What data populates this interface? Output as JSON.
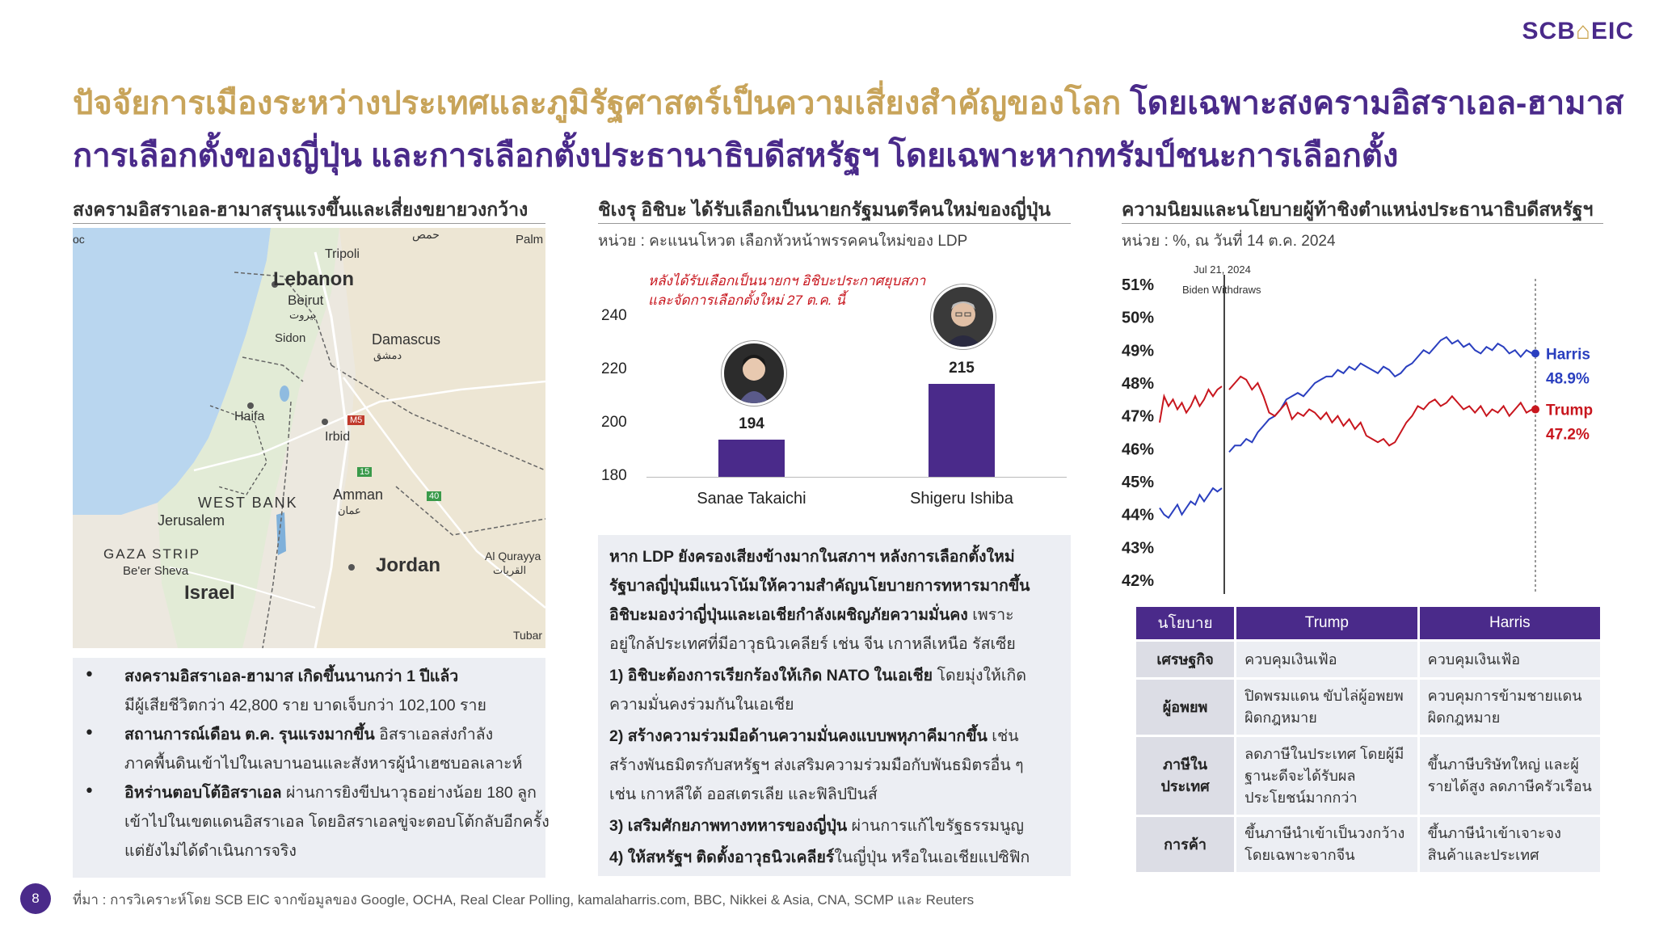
{
  "logo": {
    "left": "SCB",
    "house": "⌂",
    "right": "EIC"
  },
  "title": {
    "line1_gold": "ปัจจัยการเมืองระหว่างประเทศและภูมิรัฐศาสตร์เป็นความเสี่ยงสำคัญของโลก",
    "line1_purple": "โดยเฉพาะสงครามอิสราเอล-ฮามาส",
    "line2_purple": "การเลือกตั้งของญี่ปุ่น และการเลือกตั้งประธานาธิบดีสหรัฐฯ โดยเฉพาะหากทรัมป์ชนะการเลือกตั้ง"
  },
  "left": {
    "heading": "สงครามอิสราเอล-ฮามาสรุนแรงขึ้นและเสี่ยงขยายวงกว้าง",
    "map_labels": {
      "homs": "حمص",
      "palm": "Palm",
      "tripoli": "Tripoli",
      "lebanon": "Lebanon",
      "beirut": "Beirut",
      "beirut_ar": "بيروت",
      "sidon": "Sidon",
      "damascus": "Damascus",
      "damascus_ar": "دمشق",
      "haifa": "Haifa",
      "irbid": "Irbid",
      "westbank": "WEST BANK",
      "amman": "Amman",
      "amman_ar": "عمان",
      "jerusalem": "Jerusalem",
      "gaza": "GAZA STRIP",
      "beersheva": "Be'er Sheva",
      "jordan": "Jordan",
      "israel": "Israel",
      "alqurayyat": "Al Qurayya",
      "alqurayyat_ar": "القريات",
      "tubar": "Tubar",
      "m5": "M5",
      "r15": "15",
      "r40": "40",
      "oc": "oc"
    },
    "bullets": [
      {
        "bold": "สงครามอิสราเอล-ฮามาส เกิดขึ้นนานกว่า 1 ปีแล้ว",
        "rest1": "",
        "rest2": "มีผู้เสียชีวิตกว่า 42,800 ราย บาดเจ็บกว่า 102,100 ราย"
      },
      {
        "bold": "สถานการณ์เดือน ต.ค. รุนแรงมากขึ้น",
        "rest1": " อิสราเอลส่งกำลัง",
        "rest2": "ภาคพื้นดินเข้าไปในเลบานอนและสังหารผู้นำเฮซบอลเลาะห์"
      },
      {
        "bold": "อิหร่านตอบโต้อิสราเอล",
        "rest1": " ผ่านการยิงขีปนาวุธอย่างน้อย 180 ลูก",
        "rest2": "เข้าไปในเขตแดนอิสราเอล โดยอิสราเอลขู่จะตอบโต้กลับอีกครั้ง",
        "rest3": "แต่ยังไม่ได้ดำเนินการจริง"
      }
    ]
  },
  "middle": {
    "heading": "ชิเงรุ อิชิบะ ได้รับเลือกเป็นนายกรัฐมนตรีคนใหม่ของญี่ปุ่น",
    "unit": "หน่วย : คะแนนโหวต เลือกหัวหน้าพรรคคนใหม่ของ LDP",
    "annotation1": "หลังได้รับเลือกเป็นนายกฯ อิชิบะประกาศยุบสภา",
    "annotation2": "และจัดการเลือกตั้งใหม่ 27 ต.ค. นี้",
    "box": {
      "p1_l1": "หาก LDP ยังครองเสียงข้างมากในสภาฯ หลังการเลือกตั้งใหม่",
      "p1_l2": "รัฐบาลญี่ปุ่นมีแนวโน้มให้ความสำคัญนโยบายการทหารมากขึ้น",
      "p1_l3_bold": "อิชิบะมองว่าญี่ปุ่นและเอเชียกำลังเผชิญภัยความมั่นคง",
      "p1_l3_rest": " เพราะ",
      "p1_l4": "อยู่ใกล้ประเทศที่มีอาวุธนิวเคลียร์ เช่น จีน เกาหลีเหนือ รัสเซีย",
      "i1_bold": "1) อิชิบะต้องการเรียกร้องให้เกิด NATO ในเอเชีย",
      "i1_rest": " โดยมุ่งให้เกิด",
      "i1_l2": "ความมั่นคงร่วมกันในเอเชีย",
      "i2_bold": "2) สร้างความร่วมมือด้านความมั่นคงแบบพหุภาคีมากขึ้น",
      "i2_rest": " เช่น",
      "i2_l2": "สร้างพันธมิตรกับสหรัฐฯ ส่งเสริมความร่วมมือกับพันธมิตรอื่น ๆ",
      "i2_l3": "เช่น เกาหลีใต้ ออสเตรเลีย และฟิลิปปินส์",
      "i3_bold": "3) เสริมศักยภาพทางทหารของญี่ปุ่น",
      "i3_rest": " ผ่านการแก้ไขรัฐธรรมนูญ",
      "i4_bold": "4) ให้สหรัฐฯ ติดตั้งอาวุธนิวเคลียร์",
      "i4_rest": "ในญี่ปุ่น หรือในเอเชียแปซิฟิก"
    }
  },
  "right": {
    "heading": "ความนิยมและนโยบายผู้ท้าชิงตำแหน่งประธานาธิบดีสหรัฐฯ",
    "unit": "หน่วย : %, ณ วันที่ 14 ต.ค. 2024",
    "event_date": "Jul 21, 2024",
    "event_label": "Biden Withdraws",
    "harris_name": "Harris",
    "harris_value": "48.9%",
    "trump_name": "Trump",
    "trump_value": "47.2%",
    "table": {
      "headers": [
        "นโยบาย",
        "Trump",
        "Harris"
      ],
      "rows": [
        {
          "topic": "เศรษฐกิจ",
          "trump": "ควบคุมเงินเฟ้อ",
          "harris": "ควบคุมเงินเฟ้อ"
        },
        {
          "topic": "ผู้อพยพ",
          "trump": "ปิดพรมแดน ขับไล่ผู้อพยพผิดกฎหมาย",
          "harris": "ควบคุมการข้ามชายแดนผิดกฎหมาย"
        },
        {
          "topic": "ภาษีในประเทศ",
          "trump": "ลดภาษีในประเทศ โดยผู้มีฐานะดีจะได้รับผลประโยชน์มากกว่า",
          "harris": "ขึ้นภาษีบริษัทใหญ่ และผู้รายได้สูง ลดภาษีครัวเรือน"
        },
        {
          "topic": "การค้า",
          "trump": "ขึ้นภาษีนำเข้าเป็นวงกว้าง โดยเฉพาะจากจีน",
          "harris": "ขึ้นภาษีนำเข้าเจาะจงสินค้าและประเทศ"
        }
      ]
    }
  },
  "page_number": "8",
  "source": "ที่มา : การวิเคราะห์โดย SCB EIC จากข้อมูลของ Google, OCHA, Real Clear Polling, kamalaharris.com, BBC, Nikkei & Asia, CNA, SCMP และ Reuters",
  "chart_data": [
    {
      "type": "bar",
      "categories": [
        "Sanae Takaichi",
        "Shigeru Ishiba"
      ],
      "values": [
        194,
        215
      ],
      "ylim": [
        180,
        240
      ],
      "yticks": [
        180,
        200,
        220,
        240
      ],
      "title": "",
      "xlabel": "",
      "ylabel": ""
    },
    {
      "type": "line",
      "ylim": [
        42,
        51
      ],
      "yticks": [
        "42%",
        "43%",
        "44%",
        "45%",
        "46%",
        "47%",
        "48%",
        "49%",
        "50%",
        "51%"
      ],
      "series": [
        {
          "name": "Harris",
          "color": "#2a3fbf",
          "segments": [
            [
              44.2,
              44.0,
              43.9,
              44.1,
              44.3,
              44.0,
              44.2,
              44.4,
              44.3,
              44.6,
              44.4,
              44.6,
              44.8,
              44.7,
              44.8
            ],
            [
              45.9,
              46.1,
              46.1,
              46.3,
              46.2,
              46.5,
              46.7,
              46.9,
              47.0,
              47.2,
              47.5,
              47.6,
              47.7,
              47.6,
              47.8,
              48.0,
              48.1,
              48.2,
              48.2,
              48.4,
              48.3,
              48.5,
              48.4,
              48.6,
              48.5,
              48.4,
              48.3,
              48.5,
              48.4,
              48.2,
              48.3,
              48.5,
              48.6,
              48.8,
              49.0,
              48.9,
              49.1,
              49.3,
              49.4,
              49.2,
              49.3,
              49.1,
              49.2,
              49.0,
              48.9,
              49.1,
              49.0,
              49.2,
              49.1,
              48.9,
              49.0,
              48.8,
              49.0,
              48.9
            ]
          ]
        },
        {
          "name": "Trump",
          "color": "#c8161e",
          "segments": [
            [
              46.8,
              47.6,
              47.3,
              47.5,
              47.2,
              47.4,
              47.1,
              47.3,
              47.6,
              47.3,
              47.5,
              47.8,
              47.6,
              47.8,
              47.9
            ],
            [
              47.8,
              48.0,
              48.2,
              48.1,
              47.8,
              48.0,
              47.6,
              47.1,
              47.0,
              47.2,
              47.4,
              46.9,
              47.1,
              47.0,
              47.2,
              47.1,
              46.9,
              47.1,
              46.8,
              47.0,
              46.7,
              46.9,
              46.6,
              46.8,
              46.4,
              46.3,
              46.2,
              46.3,
              46.1,
              46.2,
              46.5,
              46.8,
              47.0,
              47.3,
              47.2,
              47.4,
              47.5,
              47.3,
              47.4,
              47.6,
              47.4,
              47.2,
              47.3,
              47.1,
              47.3,
              47.0,
              47.2,
              47.1,
              47.3,
              47.0,
              47.2,
              47.4,
              47.1,
              47.2
            ]
          ]
        }
      ],
      "event_line": {
        "label": "Biden Withdraws",
        "date": "Jul 21, 2024"
      },
      "title": "",
      "xlabel": "",
      "ylabel": ""
    }
  ]
}
